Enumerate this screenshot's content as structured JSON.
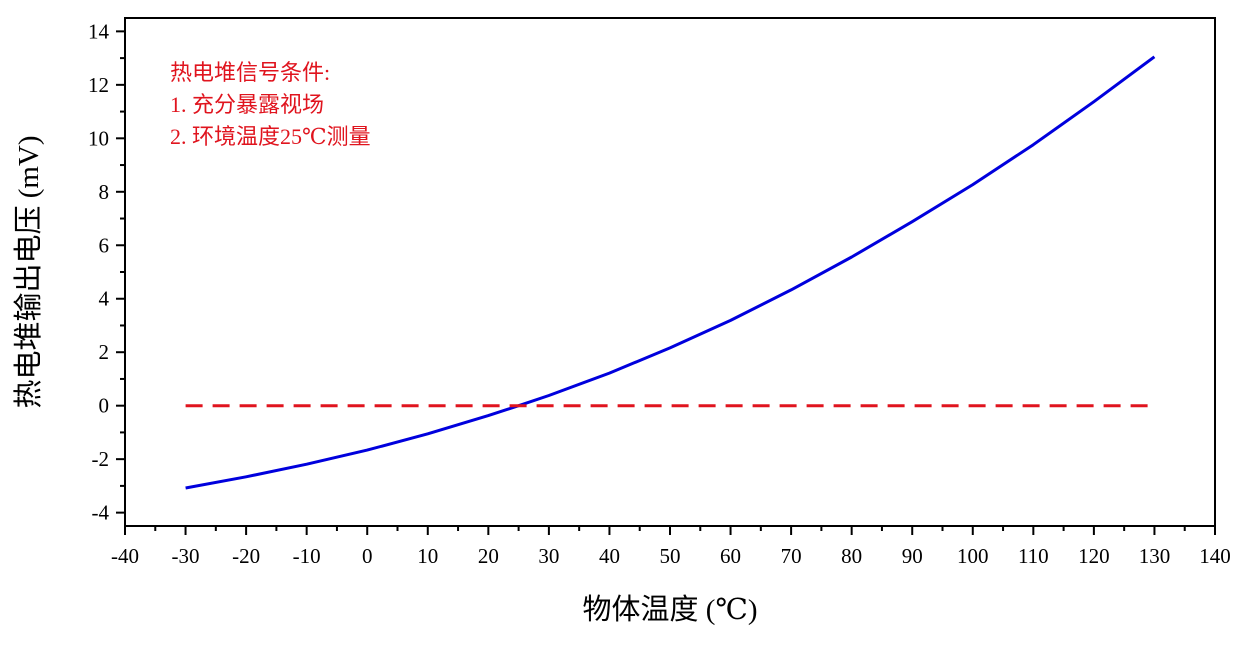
{
  "chart_data": {
    "type": "line",
    "xlabel": "物体温度 (℃)",
    "ylabel": "热电堆输出电压 (mV)",
    "xlim": [
      -40,
      140
    ],
    "ylim": [
      -4.5,
      14.5
    ],
    "xticks": [
      -40,
      -30,
      -20,
      -10,
      0,
      10,
      20,
      30,
      40,
      50,
      60,
      70,
      80,
      90,
      100,
      110,
      120,
      130,
      140
    ],
    "yticks": [
      -4,
      -2,
      0,
      2,
      4,
      6,
      8,
      10,
      12,
      14
    ],
    "grid": false,
    "annotations": [
      "热电堆信号条件:",
      "1. 充分暴露视场",
      "2. 环境温度25℃测量"
    ],
    "series": [
      {
        "style": "solid",
        "color": "#0000dd",
        "x": [
          -30,
          -20,
          -10,
          0,
          10,
          20,
          25,
          30,
          40,
          50,
          60,
          70,
          80,
          90,
          100,
          110,
          120,
          130
        ],
        "y": [
          -3.08,
          -2.66,
          -2.19,
          -1.66,
          -1.05,
          -0.37,
          0.0,
          0.38,
          1.22,
          2.16,
          3.19,
          4.33,
          5.56,
          6.88,
          8.27,
          9.76,
          11.37,
          13.05
        ]
      },
      {
        "style": "dashed",
        "color": "#e0141e",
        "x": [
          -30,
          130
        ],
        "y": [
          0,
          0
        ]
      }
    ]
  },
  "colors": {
    "annotation": "#e0141e",
    "axis": "#000000"
  }
}
